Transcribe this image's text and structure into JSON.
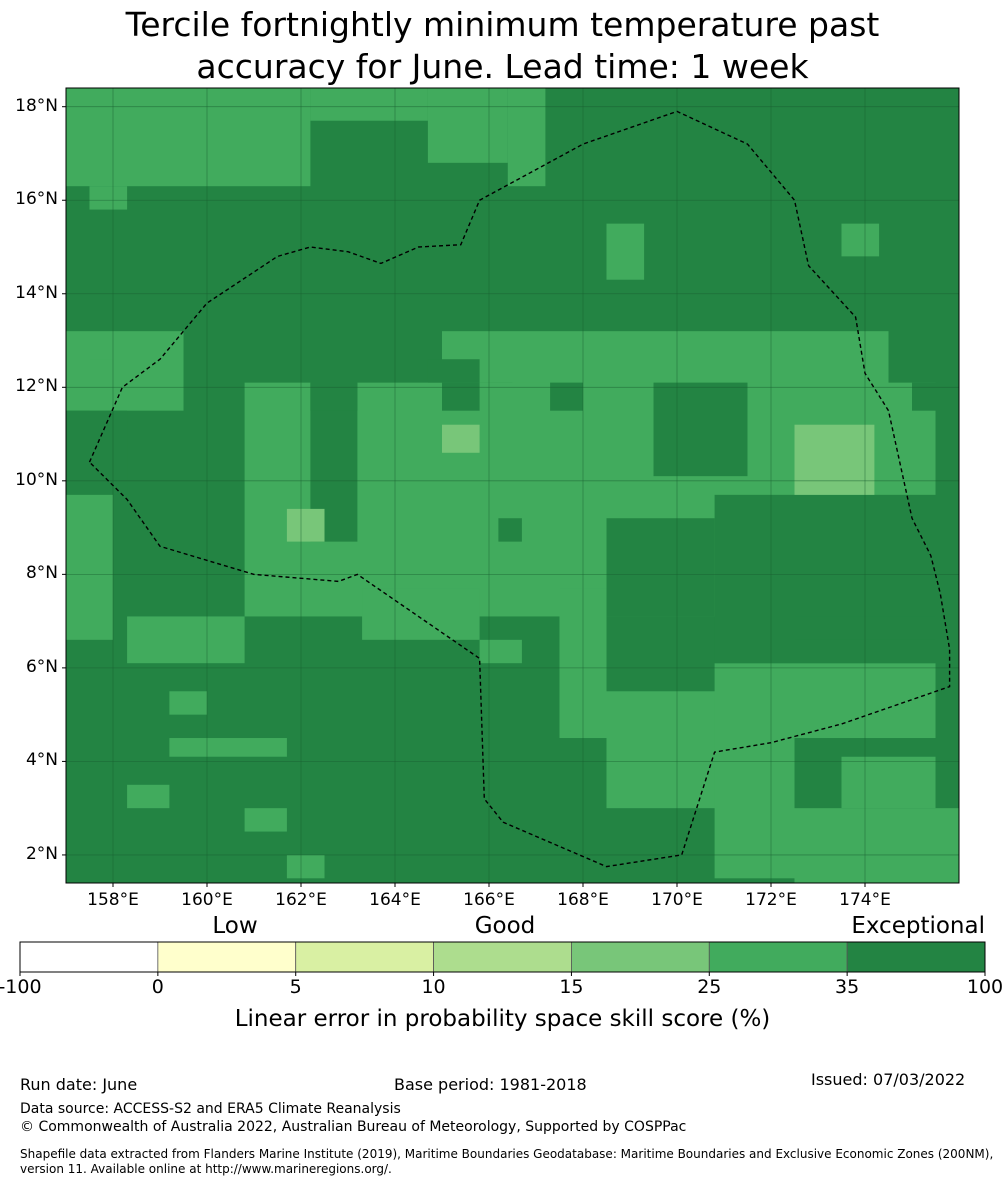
{
  "title_line1": "Tercile fortnightly minimum temperature past",
  "title_line2": "accuracy for June. Lead time: 1 week",
  "map": {
    "lon_range": [
      157,
      176
    ],
    "lat_range": [
      1.4,
      18.4
    ],
    "lat_ticks": [
      {
        "value": 18,
        "label": "18°N"
      },
      {
        "value": 16,
        "label": "16°N"
      },
      {
        "value": 14,
        "label": "14°N"
      },
      {
        "value": 12,
        "label": "12°N"
      },
      {
        "value": 10,
        "label": "10°N"
      },
      {
        "value": 8,
        "label": "8°N"
      },
      {
        "value": 6,
        "label": "6°N"
      },
      {
        "value": 4,
        "label": "4°N"
      },
      {
        "value": 2,
        "label": "2°N"
      }
    ],
    "lon_ticks": [
      {
        "value": 158,
        "label": "158°E"
      },
      {
        "value": 160,
        "label": "160°E"
      },
      {
        "value": 162,
        "label": "162°E"
      },
      {
        "value": 164,
        "label": "164°E"
      },
      {
        "value": 166,
        "label": "166°E"
      },
      {
        "value": 168,
        "label": "168°E"
      },
      {
        "value": 170,
        "label": "170°E"
      },
      {
        "value": 172,
        "label": "172°E"
      },
      {
        "value": 174,
        "label": "174°E"
      }
    ],
    "background_class": "35-100",
    "patches_25_35": [
      [
        157,
        16.3,
        162.2,
        18.4
      ],
      [
        162.2,
        17.7,
        164.7,
        18.4
      ],
      [
        164.7,
        16.8,
        166.4,
        18.4
      ],
      [
        166.4,
        16.3,
        167.2,
        18.4
      ],
      [
        157.5,
        15.8,
        158.3,
        16.3
      ],
      [
        157,
        11.5,
        159.5,
        13.2
      ],
      [
        157.5,
        11.5,
        158,
        12.6
      ],
      [
        165,
        12.1,
        166.5,
        13.2
      ],
      [
        166.5,
        11.3,
        174.5,
        13.2
      ],
      [
        168.5,
        14.3,
        169.3,
        15.5
      ],
      [
        173.5,
        14.8,
        174.3,
        15.5
      ],
      [
        160.8,
        7.1,
        175.5,
        12.1
      ],
      [
        157,
        6.6,
        158,
        10.4
      ],
      [
        158.3,
        6.1,
        160.8,
        7.1
      ],
      [
        163.3,
        6.6,
        165.8,
        7.7
      ],
      [
        165.8,
        6.1,
        166.7,
        6.6
      ],
      [
        167.5,
        4.5,
        168.5,
        7.7
      ],
      [
        168.5,
        3.0,
        172.5,
        5.5
      ],
      [
        170.8,
        1.5,
        172.5,
        6.1
      ],
      [
        172.5,
        4.5,
        175.5,
        6.1
      ],
      [
        173.5,
        3.0,
        175.5,
        4.1
      ],
      [
        172.5,
        1.4,
        176,
        3.0
      ],
      [
        161.7,
        1.5,
        162.5,
        2.0
      ],
      [
        160.8,
        2.5,
        161.7,
        3.0
      ],
      [
        158.3,
        3.0,
        159.2,
        3.5
      ],
      [
        159.2,
        4.1,
        161.7,
        4.5
      ],
      [
        159.2,
        5.0,
        160,
        5.5
      ]
    ],
    "patches_35_100": [
      [
        162.2,
        8.7,
        163.2,
        12.1
      ],
      [
        162.2,
        11.5,
        163.2,
        12.1
      ],
      [
        165,
        11.5,
        165.8,
        12.1
      ],
      [
        169.5,
        10.1,
        171.5,
        12.1
      ],
      [
        168.5,
        7.1,
        170.8,
        9.2
      ],
      [
        170.8,
        6.1,
        175.5,
        9.7
      ],
      [
        172.5,
        6.6,
        175.5,
        7.1
      ],
      [
        166.2,
        8.7,
        166.7,
        9.2
      ],
      [
        157,
        9.7,
        158.3,
        11.5
      ],
      [
        164.7,
        12.1,
        165.8,
        12.6
      ],
      [
        167.3,
        11.5,
        168,
        12.1
      ],
      [
        175,
        11.5,
        175.5,
        12.1
      ]
    ],
    "patches_15_25": [
      [
        165,
        10.6,
        165.8,
        11.2
      ],
      [
        172.5,
        9.7,
        174.2,
        11.2
      ],
      [
        161.7,
        8.7,
        162.5,
        9.4
      ]
    ],
    "eez_path": [
      [
        157.5,
        10.4
      ],
      [
        158.2,
        12.0
      ],
      [
        159,
        12.6
      ],
      [
        160,
        13.8
      ],
      [
        161.5,
        14.8
      ],
      [
        162.2,
        15.0
      ],
      [
        163.0,
        14.9
      ],
      [
        163.7,
        14.65
      ],
      [
        164.5,
        15.0
      ],
      [
        165.4,
        15.05
      ],
      [
        165.8,
        16.0
      ],
      [
        168.0,
        17.2
      ],
      [
        170.0,
        17.9
      ],
      [
        171.5,
        17.2
      ],
      [
        172.5,
        16.0
      ],
      [
        172.8,
        14.6
      ],
      [
        173.8,
        13.5
      ],
      [
        174.0,
        12.3
      ],
      [
        174.5,
        11.5
      ],
      [
        175.0,
        9.2
      ],
      [
        175.4,
        8.4
      ],
      [
        175.6,
        7.6
      ],
      [
        175.8,
        6.4
      ],
      [
        175.8,
        5.6
      ],
      [
        173.5,
        4.8
      ],
      [
        172.0,
        4.4
      ],
      [
        170.8,
        4.2
      ],
      [
        170.1,
        2.0
      ],
      [
        168.5,
        1.75
      ],
      [
        166.3,
        2.7
      ],
      [
        165.9,
        3.2
      ],
      [
        165.8,
        6.2
      ],
      [
        163.2,
        8.0
      ],
      [
        162.8,
        7.85
      ],
      [
        161.0,
        8.0
      ],
      [
        159.0,
        8.6
      ],
      [
        158.3,
        9.6
      ],
      [
        157.5,
        10.4
      ]
    ]
  },
  "colorbar": {
    "category_labels": [
      "Low",
      "Good",
      "Exceptional"
    ],
    "ticks": [
      "-100",
      "0",
      "5",
      "10",
      "15",
      "25",
      "35",
      "100"
    ],
    "colors": [
      "#ffffff",
      "#ffffcc",
      "#d9f0a3",
      "#addd8e",
      "#78c679",
      "#41ab5d",
      "#238443"
    ],
    "axis_title": "Linear error in probability space skill score (%)"
  },
  "footer": {
    "run_date": "Run date: June",
    "base_period": "Base period: 1981-2018",
    "issued": "Issued: 07/03/2022",
    "data_source": "Data source: ACCESS-S2 and ERA5 Climate Reanalysis",
    "copyright": "© Commonwealth of Australia 2022, Australian Bureau of Meteorology, Supported by COSPPac",
    "shapefile_line1": "Shapefile data extracted from Flanders Marine Institute (2019), Maritime Boundaries Geodatabase: Maritime Boundaries and Exclusive Economic Zones (200NM),",
    "shapefile_line2": "version 11. Available online at http://www.marineregions.org/."
  }
}
